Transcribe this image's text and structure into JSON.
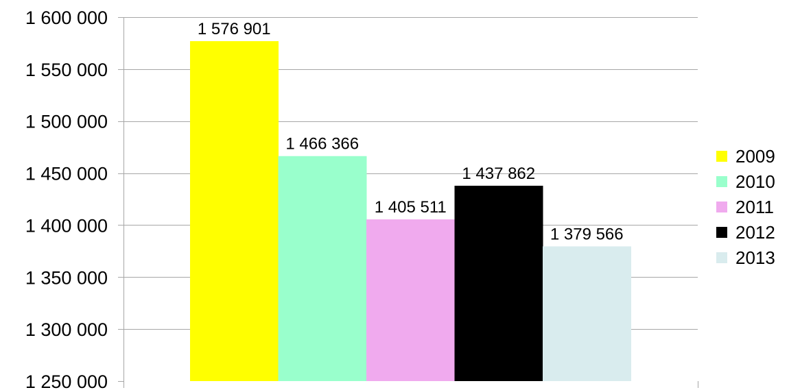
{
  "chart_data": {
    "type": "bar",
    "categories": [
      ""
    ],
    "series": [
      {
        "name": "2009",
        "values": [
          1576901
        ],
        "label": "1 576 901",
        "color": "#ffff00"
      },
      {
        "name": "2010",
        "values": [
          1466366
        ],
        "label": "1 466 366",
        "color": "#99ffcc"
      },
      {
        "name": "2011",
        "values": [
          1405511
        ],
        "label": "1 405 511",
        "color": "#f0aaee"
      },
      {
        "name": "2012",
        "values": [
          1437862
        ],
        "label": "1 437 862",
        "color": "#000000"
      },
      {
        "name": "2013",
        "values": [
          1379566
        ],
        "label": "1 379 566",
        "color": "#d9ecee"
      }
    ],
    "ylim": [
      1250000,
      1600000
    ],
    "yticks": [
      1250000,
      1300000,
      1350000,
      1400000,
      1450000,
      1500000,
      1550000,
      1600000
    ],
    "ytick_labels": [
      "1 250 000",
      "1 300 000",
      "1 350 000",
      "1 400 000",
      "1 450 000",
      "1 500 000",
      "1 550 000",
      "1 600 000"
    ],
    "title": "",
    "xlabel": "",
    "ylabel": "",
    "grid": true,
    "legend_position": "right"
  }
}
